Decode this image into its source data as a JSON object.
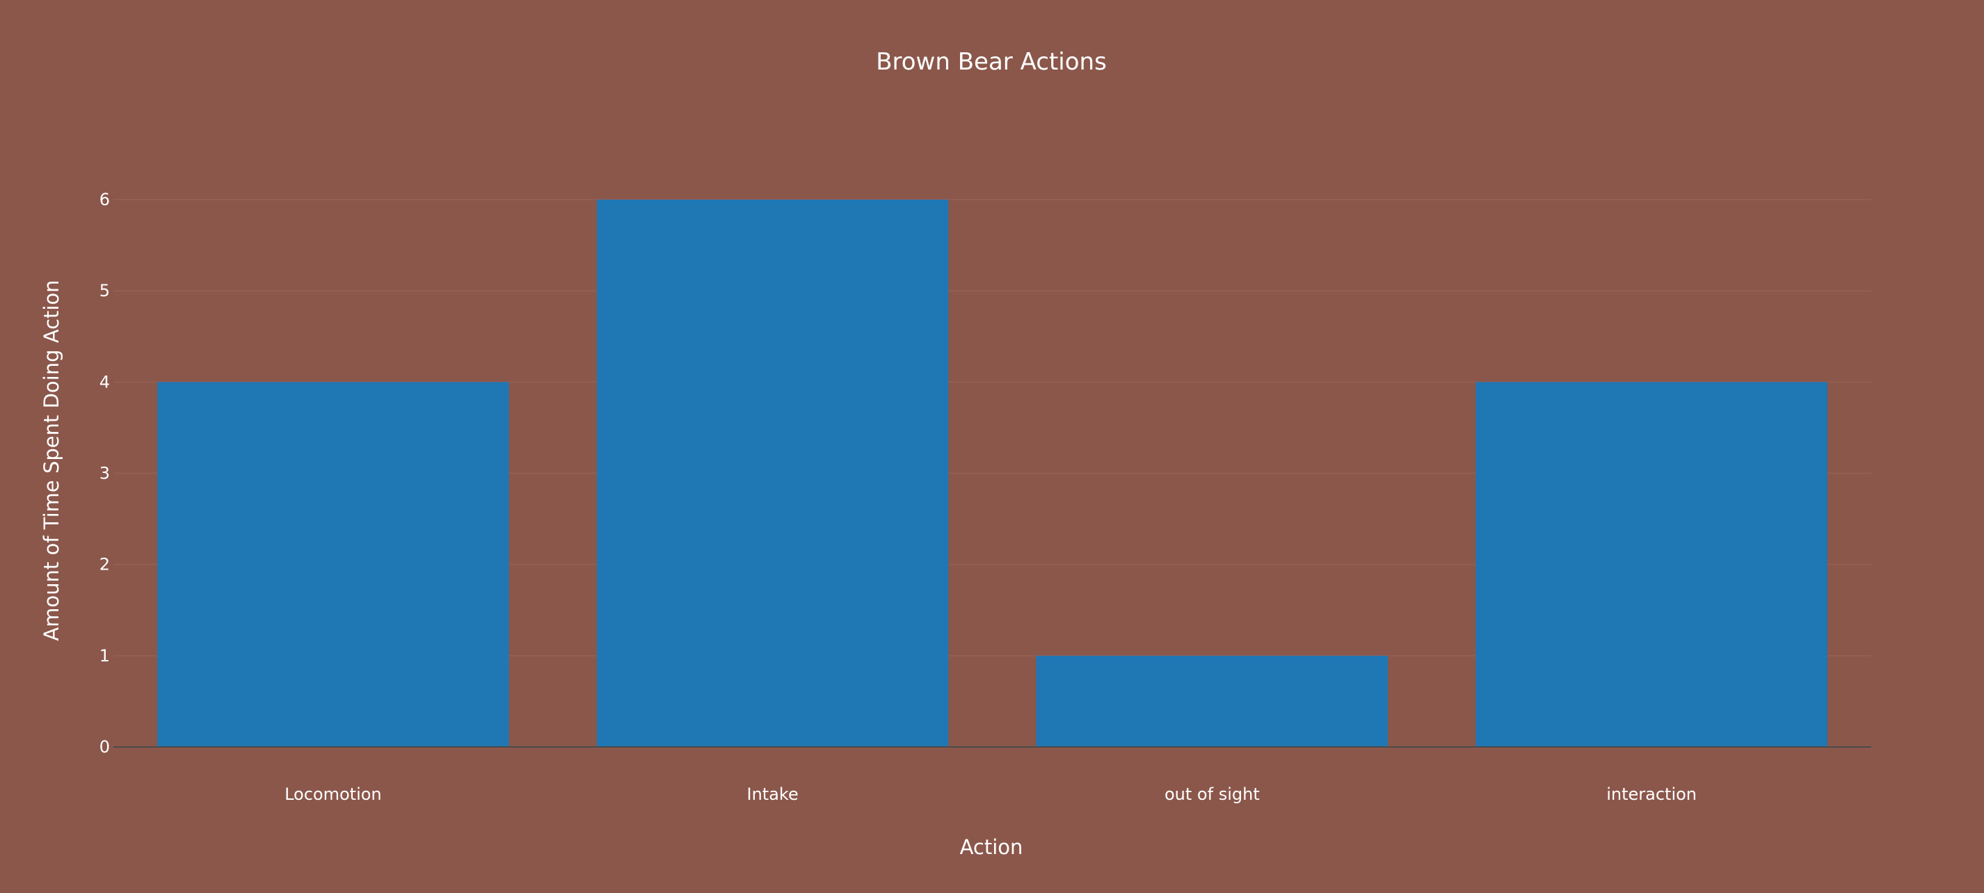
{
  "chart_data": {
    "type": "bar",
    "title": "Brown Bear Actions",
    "xlabel": "Action",
    "ylabel": "Amount of Time Spent Doing Action",
    "categories": [
      "Locomotion",
      "Intake",
      "out of sight",
      "interaction"
    ],
    "values": [
      4,
      6,
      1,
      4
    ],
    "ylim": [
      0,
      6
    ],
    "yticks": [
      0,
      1,
      2,
      3,
      4,
      5,
      6
    ],
    "grid": true,
    "legend": "none",
    "colors": {
      "background": "#8b574b",
      "bar": "#1f77b4",
      "text": "#ffffff"
    }
  }
}
